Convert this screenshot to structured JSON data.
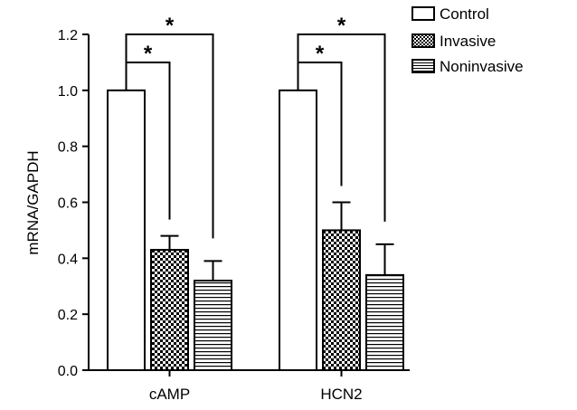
{
  "chart_data": {
    "type": "bar",
    "categories": [
      "cAMP",
      "HCN2"
    ],
    "series": [
      {
        "name": "Control",
        "values": [
          1.0,
          1.0
        ],
        "errors": [
          0,
          0
        ],
        "pattern": "empty"
      },
      {
        "name": "Invasive",
        "values": [
          0.43,
          0.5
        ],
        "errors": [
          0.05,
          0.1
        ],
        "pattern": "checker"
      },
      {
        "name": "Noninvasive",
        "values": [
          0.32,
          0.34
        ],
        "errors": [
          0.07,
          0.11
        ],
        "pattern": "stripes"
      }
    ],
    "ylabel": "mRNA/GAPDH",
    "xlabel": "",
    "ylim": [
      0.0,
      1.2
    ],
    "yticks": [
      "0.0",
      "0.2",
      "0.4",
      "0.6",
      "0.8",
      "1.0",
      "1.2"
    ],
    "grid": false,
    "legend_position": "top-right",
    "significance": [
      {
        "category": "cAMP",
        "from": "Control",
        "to": "Invasive",
        "label": "*"
      },
      {
        "category": "cAMP",
        "from": "Control",
        "to": "Noninvasive",
        "label": "*"
      },
      {
        "category": "HCN2",
        "from": "Control",
        "to": "Invasive",
        "label": "*"
      },
      {
        "category": "HCN2",
        "from": "Control",
        "to": "Noninvasive",
        "label": "*"
      }
    ]
  }
}
